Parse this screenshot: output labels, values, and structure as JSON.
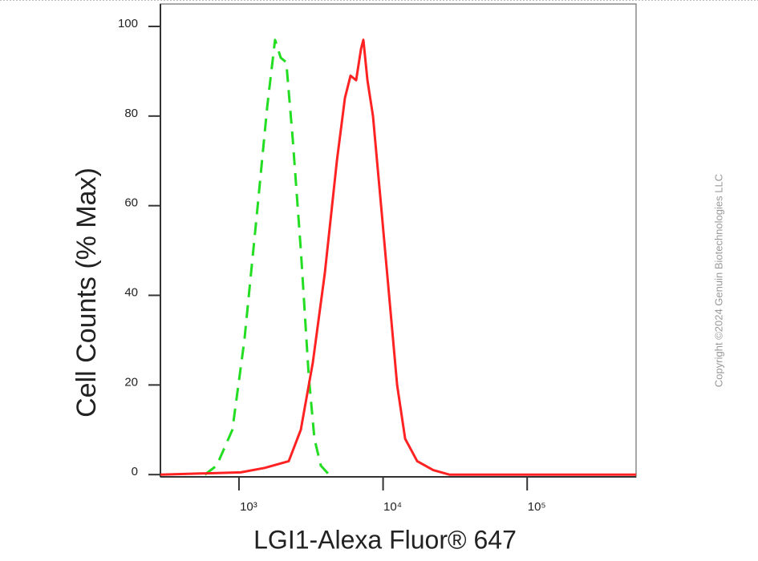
{
  "chart_data": {
    "type": "line",
    "xlabel": "LGI1-Alexa Fluor® 647",
    "ylabel": "Cell Counts (% Max)",
    "copyright": "Copyright ©2024 Genuin Biotechnologies LLC",
    "xscale": "log",
    "xlim": [
      285,
      570000
    ],
    "ylim": [
      -0.5,
      105
    ],
    "xticks": [
      {
        "value": 1000,
        "label": "10³"
      },
      {
        "value": 10000,
        "label": "10⁴"
      },
      {
        "value": 100000,
        "label": "10⁵"
      }
    ],
    "yticks": [
      0,
      20,
      40,
      60,
      80,
      100
    ],
    "series": [
      {
        "color": "#22dd22",
        "dashed": true,
        "x": [
          580,
          700,
          900,
          1090,
          1330,
          1570,
          1780,
          1950,
          2130,
          2360,
          2690,
          3050,
          3340,
          3700,
          4210
        ],
        "values": [
          0,
          2,
          10,
          30,
          58,
          82,
          97,
          93,
          92,
          75,
          50,
          22,
          8,
          2,
          0
        ]
      },
      {
        "color": "#ff2222",
        "dashed": false,
        "x": [
          285,
          1030,
          1510,
          2215,
          2685,
          3254,
          3946,
          4783,
          5438,
          5948,
          6506,
          7028,
          7302,
          7789,
          8517,
          9683,
          11010,
          12520,
          14230,
          17250,
          22290,
          28820,
          570000
        ],
        "values": [
          0,
          0.5,
          1.5,
          3,
          10,
          25,
          45,
          70,
          84,
          89,
          88,
          95,
          97,
          88,
          80,
          60,
          40,
          20,
          8,
          3,
          1,
          0,
          0
        ]
      }
    ]
  }
}
